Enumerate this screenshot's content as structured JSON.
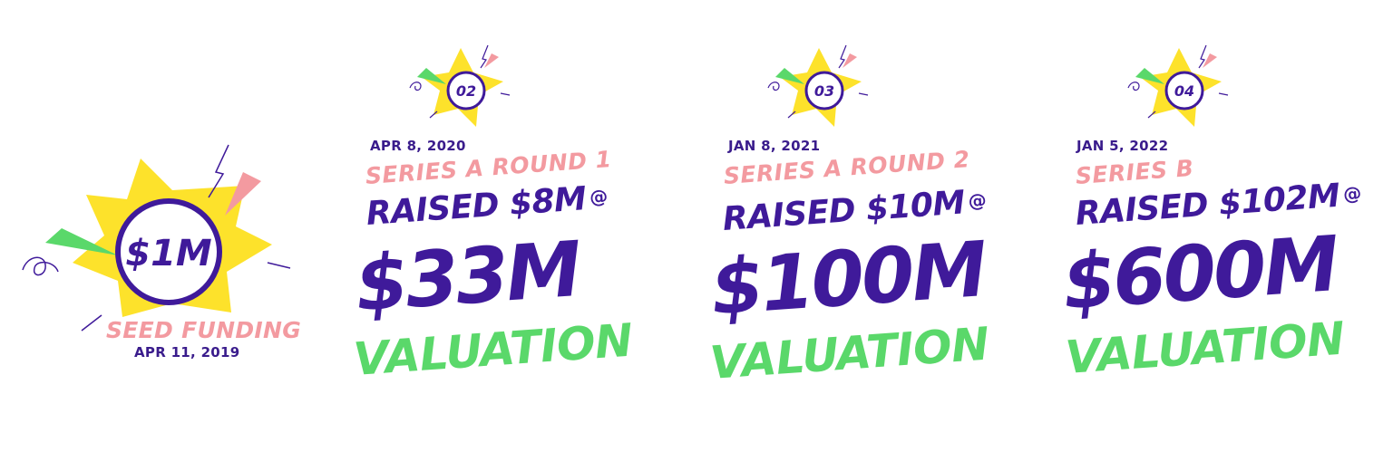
{
  "seed": {
    "amount": "$1M",
    "label": "SEED FUNDING",
    "date": "APR 11, 2019"
  },
  "rounds": [
    {
      "number": "02",
      "date": "APR 8, 2020",
      "series": "SERIES A ROUND 1",
      "raised": "RAISED $8M",
      "at": "@",
      "valuation_amount": "$33M",
      "valuation_label": "VALUATION"
    },
    {
      "number": "03",
      "date": "JAN 8, 2021",
      "series": "SERIES A ROUND 2",
      "raised": "RAISED $10M",
      "at": "@",
      "valuation_amount": "$100M",
      "valuation_label": "VALUATION"
    },
    {
      "number": "04",
      "date": "JAN 5, 2022",
      "series": "SERIES B",
      "raised": "RAISED $102M",
      "at": "@",
      "valuation_amount": "$600M",
      "valuation_label": "VALUATION"
    }
  ],
  "colors": {
    "purple": "#3f1a9a",
    "pink": "#f39aa0",
    "green": "#5ad86a",
    "yellow": "#fde22b"
  }
}
